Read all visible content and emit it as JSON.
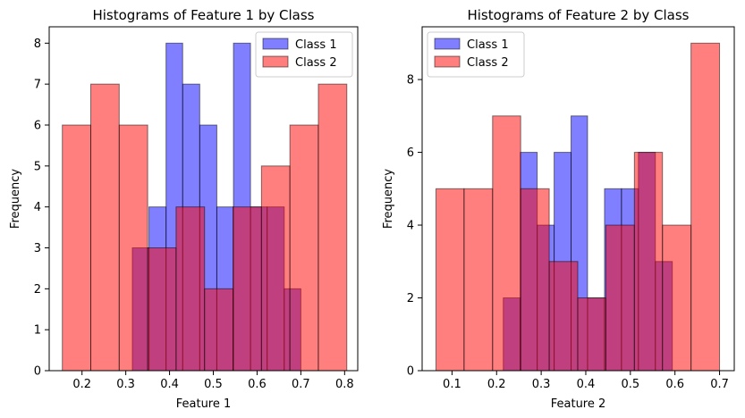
{
  "chart_data": [
    {
      "type": "histogram",
      "title": "Histograms of Feature 1 by Class",
      "xlabel": "Feature 1",
      "ylabel": "Frequency",
      "xlim": [
        0.125,
        0.83
      ],
      "ylim": [
        0,
        8.4
      ],
      "xticks": [
        "0.2",
        "0.3",
        "0.4",
        "0.5",
        "0.6",
        "0.7",
        "0.8"
      ],
      "yticks": [
        "0",
        "1",
        "2",
        "3",
        "4",
        "5",
        "6",
        "7",
        "8"
      ],
      "grid": false,
      "legend_position": "top-right",
      "series": [
        {
          "name": "Class 1",
          "color": "#0000ff",
          "bins": [
            [
              0.315,
              0.353,
              3
            ],
            [
              0.353,
              0.392,
              4
            ],
            [
              0.392,
              0.43,
              8
            ],
            [
              0.43,
              0.469,
              7
            ],
            [
              0.469,
              0.508,
              6
            ],
            [
              0.508,
              0.546,
              4
            ],
            [
              0.546,
              0.585,
              8
            ],
            [
              0.585,
              0.623,
              4
            ],
            [
              0.623,
              0.662,
              4
            ],
            [
              0.662,
              0.7,
              2
            ]
          ]
        },
        {
          "name": "Class 2",
          "color": "#ff0000",
          "bins": [
            [
              0.155,
              0.22,
              6
            ],
            [
              0.22,
              0.285,
              7
            ],
            [
              0.285,
              0.35,
              6
            ],
            [
              0.35,
              0.415,
              3
            ],
            [
              0.415,
              0.48,
              4
            ],
            [
              0.48,
              0.545,
              2
            ],
            [
              0.545,
              0.61,
              4
            ],
            [
              0.61,
              0.675,
              5
            ],
            [
              0.675,
              0.74,
              6
            ],
            [
              0.74,
              0.805,
              7
            ]
          ]
        }
      ]
    },
    {
      "type": "histogram",
      "title": "Histograms of Feature 2 by Class",
      "xlabel": "Feature 2",
      "ylabel": "Frequency",
      "xlim": [
        0.033,
        0.733
      ],
      "ylim": [
        0,
        9.45
      ],
      "xticks": [
        "0.1",
        "0.2",
        "0.3",
        "0.4",
        "0.5",
        "0.6",
        "0.7"
      ],
      "yticks": [
        "0",
        "2",
        "4",
        "6",
        "8"
      ],
      "grid": false,
      "legend_position": "top-left",
      "series": [
        {
          "name": "Class 1",
          "color": "#0000ff",
          "bins": [
            [
              0.215,
              0.253,
              2
            ],
            [
              0.253,
              0.291,
              6
            ],
            [
              0.291,
              0.329,
              4
            ],
            [
              0.329,
              0.367,
              6
            ],
            [
              0.367,
              0.404,
              7
            ],
            [
              0.404,
              0.442,
              2
            ],
            [
              0.442,
              0.48,
              5
            ],
            [
              0.48,
              0.518,
              5
            ],
            [
              0.518,
              0.556,
              6
            ],
            [
              0.556,
              0.594,
              3
            ]
          ]
        },
        {
          "name": "Class 2",
          "color": "#ff0000",
          "bins": [
            [
              0.064,
              0.127,
              5
            ],
            [
              0.127,
              0.191,
              5
            ],
            [
              0.191,
              0.254,
              7
            ],
            [
              0.254,
              0.318,
              5
            ],
            [
              0.318,
              0.382,
              3
            ],
            [
              0.382,
              0.445,
              2
            ],
            [
              0.445,
              0.509,
              4
            ],
            [
              0.509,
              0.572,
              6
            ],
            [
              0.572,
              0.636,
              4
            ],
            [
              0.636,
              0.7,
              9
            ]
          ]
        }
      ]
    }
  ]
}
